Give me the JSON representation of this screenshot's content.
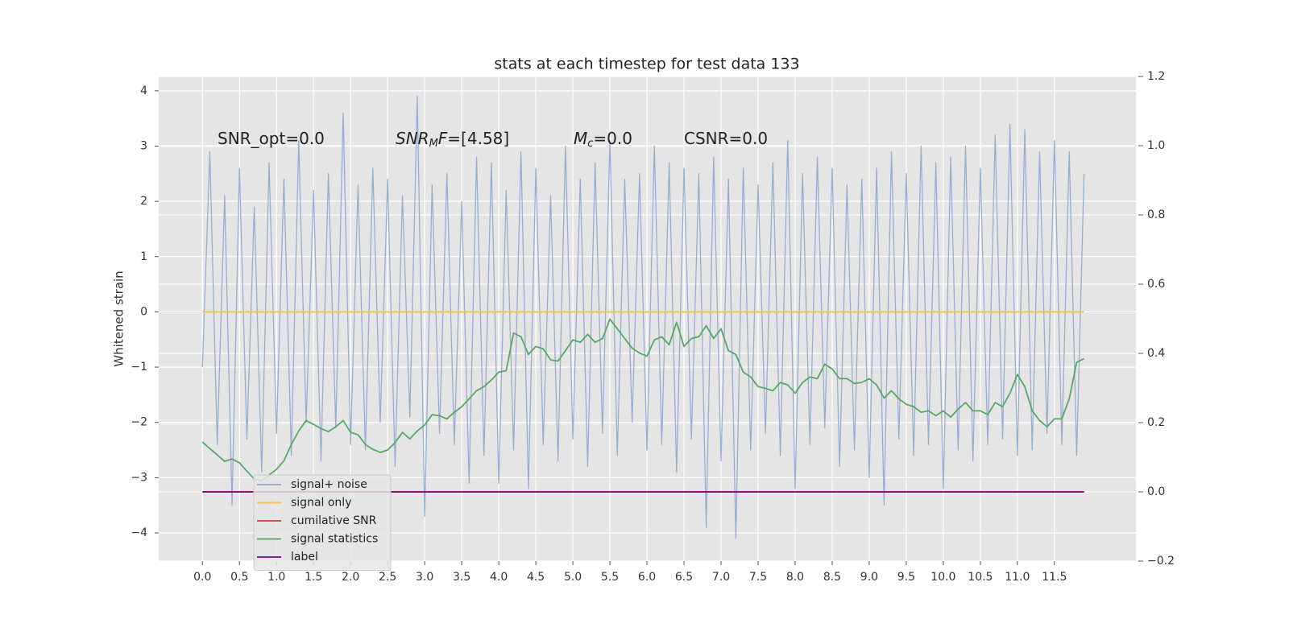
{
  "chart_data": {
    "type": "line",
    "title": "stats at each timestep for test data 133",
    "ylabel": "Whitened strain",
    "grid": true,
    "legend_loc": "lower left",
    "xlim": [
      -0.59,
      12.6
    ],
    "ylim": [
      -4.51,
      4.26
    ],
    "y2lim": [
      -0.2,
      1.2
    ],
    "xticks": [
      {
        "value": 0,
        "label": "0.0"
      },
      0.5,
      {
        "value": 1,
        "label": "1.0"
      },
      1.5,
      {
        "value": 2,
        "label": "2.0"
      },
      2.5,
      {
        "value": 3,
        "label": "3.0"
      },
      3.5,
      {
        "value": 4,
        "label": "4.0"
      },
      4.5,
      {
        "value": 5,
        "label": "5.0"
      },
      5.5,
      {
        "value": 6,
        "label": "6.0"
      },
      6.5,
      {
        "value": 7,
        "label": "7.0"
      },
      7.5,
      {
        "value": 8,
        "label": "8.0"
      },
      8.5,
      {
        "value": 9,
        "label": "9.0"
      },
      9.5,
      {
        "value": 10,
        "label": "10.0"
      },
      10.5,
      {
        "value": 11,
        "label": "11.0"
      },
      11.5
    ],
    "yticks": [
      {
        "value": -4,
        "label": "−4"
      },
      {
        "value": -3,
        "label": "−3"
      },
      {
        "value": -2,
        "label": "−2"
      },
      {
        "value": -1,
        "label": "−1"
      },
      0,
      1,
      2,
      3,
      4
    ],
    "y2ticks": [
      {
        "value": -0.2,
        "label": "−0.2"
      },
      {
        "value": 0,
        "label": "0.0"
      },
      0.2,
      0.4,
      0.6,
      0.8,
      {
        "value": 1,
        "label": "1.0"
      },
      1.2
    ],
    "annotations": [
      [
        {
          "text": "SNR_opt=0.0",
          "style": "normal"
        }
      ],
      [
        {
          "text": "SNR",
          "style": "italic"
        },
        {
          "text": "M",
          "style": "sub"
        },
        {
          "text": "F",
          "style": "italic"
        },
        {
          "text": "=[4.58]",
          "style": "normal"
        }
      ],
      [
        {
          "text": "M",
          "style": "italic"
        },
        {
          "text": "c",
          "style": "sub"
        },
        {
          "text": "=0.0",
          "style": "normal"
        }
      ],
      [
        {
          "text": "CSNR=0.0",
          "style": "normal"
        }
      ]
    ],
    "x": [
      0,
      0.1,
      0.2,
      0.3,
      0.4,
      0.5,
      0.6,
      0.7,
      0.8,
      0.9,
      1,
      1.1,
      1.2,
      1.3,
      1.4,
      1.5,
      1.6,
      1.7,
      1.8,
      1.9,
      2,
      2.1,
      2.2,
      2.3,
      2.4,
      2.5,
      2.6,
      2.7,
      2.8,
      2.9,
      3,
      3.1,
      3.2,
      3.3,
      3.4,
      3.5,
      3.6,
      3.7,
      3.8,
      3.9,
      4,
      4.1,
      4.2,
      4.3,
      4.4,
      4.5,
      4.6,
      4.7,
      4.8,
      4.9,
      5,
      5.1,
      5.2,
      5.3,
      5.4,
      5.5,
      5.6,
      5.7,
      5.8,
      5.9,
      6,
      6.1,
      6.2,
      6.3,
      6.4,
      6.5,
      6.6,
      6.7,
      6.8,
      6.9,
      7,
      7.1,
      7.2,
      7.3,
      7.4,
      7.5,
      7.6,
      7.7,
      7.8,
      7.9,
      8,
      8.1,
      8.2,
      8.3,
      8.4,
      8.5,
      8.6,
      8.7,
      8.8,
      8.9,
      9,
      9.1,
      9.2,
      9.3,
      9.4,
      9.5,
      9.6,
      9.7,
      9.8,
      9.9,
      10,
      10.1,
      10.2,
      10.3,
      10.4,
      10.5,
      10.6,
      10.7,
      10.8,
      10.9,
      11,
      11.1,
      11.2,
      11.3,
      11.4,
      11.5,
      11.6,
      11.7,
      11.8,
      11.9
    ],
    "series": [
      {
        "name": "signal+ noise",
        "color": "#92a6cc",
        "axis": "y",
        "values": [
          -1.0,
          2.9,
          -2.4,
          2.1,
          -3.5,
          2.6,
          -2.3,
          1.9,
          -2.9,
          2.7,
          -2.2,
          2.4,
          -2.6,
          3.1,
          -2.0,
          2.2,
          -2.7,
          2.5,
          -2.1,
          3.6,
          -2.4,
          2.3,
          -2.5,
          2.6,
          -2.0,
          2.4,
          -2.8,
          2.1,
          -1.9,
          3.9,
          -3.7,
          2.3,
          -2.2,
          2.5,
          -2.4,
          2.0,
          -3.1,
          2.8,
          -2.6,
          2.7,
          -3.1,
          2.2,
          -2.5,
          2.9,
          -3.2,
          2.6,
          -2.4,
          2.1,
          -2.7,
          3.0,
          -2.3,
          2.4,
          -2.8,
          2.7,
          -2.2,
          3.1,
          -2.6,
          2.4,
          -2.0,
          2.5,
          -2.5,
          3.0,
          -2.4,
          2.7,
          -2.9,
          2.6,
          -2.3,
          2.5,
          -3.9,
          2.8,
          -2.7,
          2.4,
          -4.1,
          2.6,
          -2.5,
          2.3,
          -2.2,
          2.7,
          -2.6,
          3.1,
          -3.2,
          2.5,
          -2.4,
          2.8,
          -2.1,
          2.6,
          -2.8,
          2.3,
          -2.5,
          2.4,
          -3.0,
          2.6,
          -3.5,
          2.9,
          -2.3,
          2.5,
          -2.6,
          3.0,
          -2.4,
          2.7,
          -3.2,
          2.8,
          -2.5,
          3.0,
          -2.7,
          2.6,
          -2.4,
          3.2,
          -2.3,
          3.4,
          -2.6,
          3.3,
          -2.5,
          2.9,
          -2.2,
          3.1,
          -2.4,
          2.9,
          -2.6,
          2.5
        ]
      },
      {
        "name": "signal only",
        "color": "#f2c14e",
        "axis": "y",
        "values": [
          0,
          0,
          0,
          0,
          0,
          0,
          0,
          0,
          0,
          0,
          0,
          0,
          0,
          0,
          0,
          0,
          0,
          0,
          0,
          0,
          0,
          0,
          0,
          0,
          0,
          0,
          0,
          0,
          0,
          0,
          0,
          0,
          0,
          0,
          0,
          0,
          0,
          0,
          0,
          0,
          0,
          0,
          0,
          0,
          0,
          0,
          0,
          0,
          0,
          0,
          0,
          0,
          0,
          0,
          0,
          0,
          0,
          0,
          0,
          0,
          0,
          0,
          0,
          0,
          0,
          0,
          0,
          0,
          0,
          0,
          0,
          0,
          0,
          0,
          0,
          0,
          0,
          0,
          0,
          0,
          0,
          0,
          0,
          0,
          0,
          0,
          0,
          0,
          0,
          0,
          0,
          0,
          0,
          0,
          0,
          0,
          0,
          0,
          0,
          0,
          0,
          0,
          0,
          0,
          0,
          0,
          0,
          0,
          0,
          0,
          0,
          0,
          0,
          0,
          0,
          0,
          0,
          0,
          0,
          0
        ]
      },
      {
        "name": "cumilative SNR",
        "color": "#d33a3a",
        "axis": "y2",
        "values": [
          0,
          0,
          0,
          0,
          0,
          0,
          0,
          0,
          0,
          0,
          0,
          0,
          0,
          0,
          0,
          0,
          0,
          0,
          0,
          0,
          0,
          0,
          0,
          0,
          0,
          0,
          0,
          0,
          0,
          0,
          0,
          0,
          0,
          0,
          0,
          0,
          0,
          0,
          0,
          0,
          0,
          0,
          0,
          0,
          0,
          0,
          0,
          0,
          0,
          0,
          0,
          0,
          0,
          0,
          0,
          0,
          0,
          0,
          0,
          0,
          0,
          0,
          0,
          0,
          0,
          0,
          0,
          0,
          0,
          0,
          0,
          0,
          0,
          0,
          0,
          0,
          0,
          0,
          0,
          0,
          0,
          0,
          0,
          0,
          0,
          0,
          0,
          0,
          0,
          0,
          0,
          0,
          0,
          0,
          0,
          0,
          0,
          0,
          0,
          0,
          0,
          0,
          0,
          0,
          0,
          0,
          0,
          0,
          0,
          0,
          0,
          0,
          0,
          0,
          0,
          0,
          0,
          0,
          0,
          0
        ]
      },
      {
        "name": "signal statistics",
        "color": "#55a868",
        "axis": "y2",
        "values": [
          0.144,
          0.125,
          0.107,
          0.088,
          0.095,
          0.084,
          0.06,
          0.037,
          0.032,
          0.049,
          0.065,
          0.09,
          0.137,
          0.176,
          0.206,
          0.195,
          0.183,
          0.174,
          0.188,
          0.206,
          0.172,
          0.165,
          0.137,
          0.123,
          0.114,
          0.121,
          0.142,
          0.172,
          0.153,
          0.176,
          0.193,
          0.223,
          0.22,
          0.211,
          0.23,
          0.246,
          0.269,
          0.292,
          0.304,
          0.323,
          0.346,
          0.35,
          0.459,
          0.448,
          0.397,
          0.42,
          0.413,
          0.381,
          0.378,
          0.408,
          0.439,
          0.432,
          0.455,
          0.432,
          0.443,
          0.499,
          0.471,
          0.443,
          0.415,
          0.401,
          0.392,
          0.439,
          0.448,
          0.425,
          0.49,
          0.42,
          0.443,
          0.448,
          0.48,
          0.443,
          0.471,
          0.408,
          0.397,
          0.346,
          0.332,
          0.304,
          0.299,
          0.292,
          0.316,
          0.309,
          0.285,
          0.316,
          0.332,
          0.327,
          0.369,
          0.355,
          0.327,
          0.327,
          0.313,
          0.316,
          0.327,
          0.309,
          0.271,
          0.292,
          0.269,
          0.253,
          0.246,
          0.23,
          0.234,
          0.22,
          0.234,
          0.216,
          0.239,
          0.258,
          0.234,
          0.234,
          0.223,
          0.258,
          0.246,
          0.285,
          0.339,
          0.304,
          0.234,
          0.206,
          0.188,
          0.211,
          0.211,
          0.269,
          0.374,
          0.385
        ]
      },
      {
        "name": "label",
        "color": "#800080",
        "axis": "y2",
        "values": [
          0,
          0,
          0,
          0,
          0,
          0,
          0,
          0,
          0,
          0,
          0,
          0,
          0,
          0,
          0,
          0,
          0,
          0,
          0,
          0,
          0,
          0,
          0,
          0,
          0,
          0,
          0,
          0,
          0,
          0,
          0,
          0,
          0,
          0,
          0,
          0,
          0,
          0,
          0,
          0,
          0,
          0,
          0,
          0,
          0,
          0,
          0,
          0,
          0,
          0,
          0,
          0,
          0,
          0,
          0,
          0,
          0,
          0,
          0,
          0,
          0,
          0,
          0,
          0,
          0,
          0,
          0,
          0,
          0,
          0,
          0,
          0,
          0,
          0,
          0,
          0,
          0,
          0,
          0,
          0,
          0,
          0,
          0,
          0,
          0,
          0,
          0,
          0,
          0,
          0,
          0,
          0,
          0,
          0,
          0,
          0,
          0,
          0,
          0,
          0,
          0,
          0,
          0,
          0,
          0,
          0,
          0,
          0,
          0,
          0,
          0,
          0,
          0,
          0,
          0,
          0,
          0,
          0,
          0,
          0
        ]
      }
    ]
  }
}
